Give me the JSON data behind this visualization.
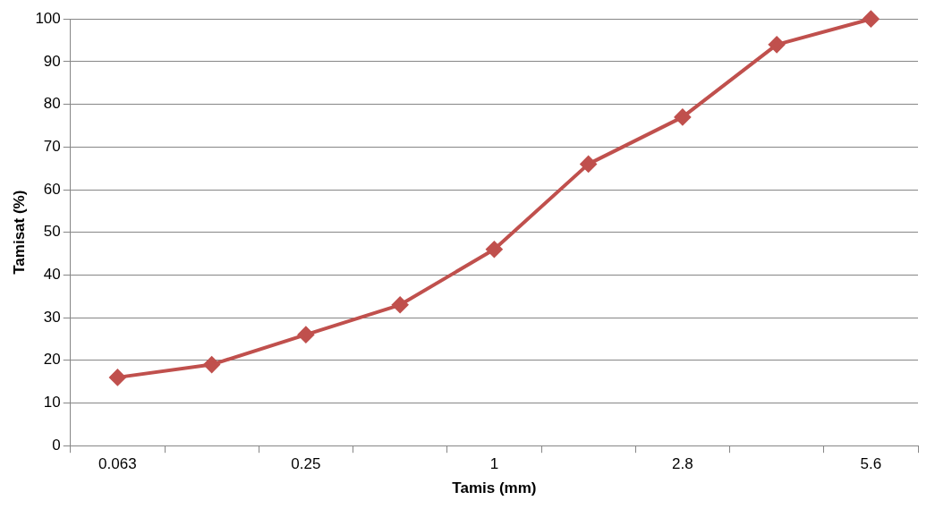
{
  "chart_data": {
    "type": "line",
    "xlabel": "Tamis (mm)",
    "ylabel": "Tamisat (%)",
    "categories": [
      "0.063",
      null,
      "0.25",
      null,
      "1",
      null,
      "2.8",
      null,
      "5.6"
    ],
    "series": [
      {
        "color": "#c0504d",
        "values": [
          16,
          19,
          26,
          33,
          46,
          66,
          77,
          94,
          100
        ]
      }
    ],
    "ylim": [
      0,
      100
    ],
    "yticks": [
      0,
      10,
      20,
      30,
      40,
      50,
      60,
      70,
      80,
      90,
      100
    ],
    "grid": "y",
    "legend": false,
    "marker": "diamond",
    "line_style": "solid"
  }
}
